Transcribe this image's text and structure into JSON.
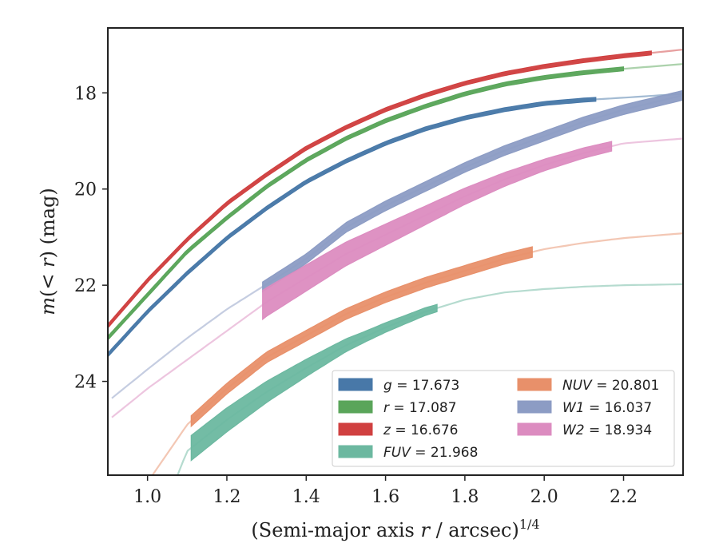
{
  "chart_data": {
    "type": "line",
    "xlabel": "(Semi-major axis r / arcsec)^1/4",
    "ylabel": "m(< r) (mag)",
    "xlim": [
      0.9,
      2.35
    ],
    "ylim": [
      25.95,
      16.65
    ],
    "y_inverted": true,
    "xticks": [
      "1.0",
      "1.2",
      "1.4",
      "1.6",
      "1.8",
      "2.0",
      "2.2"
    ],
    "yticks": [
      "18",
      "20",
      "22",
      "24"
    ],
    "grid": false,
    "legend_position": "lower-right",
    "series": [
      {
        "name": "g = 17.673",
        "label_var": "g",
        "label_val": "17.673",
        "color": "#4878a8",
        "x": [
          0.9,
          1.0,
          1.1,
          1.2,
          1.3,
          1.4,
          1.5,
          1.6,
          1.7,
          1.8,
          1.9,
          2.0,
          2.1,
          2.2,
          2.35
        ],
        "y": [
          23.45,
          22.55,
          21.75,
          21.02,
          20.4,
          19.85,
          19.42,
          19.05,
          18.75,
          18.52,
          18.35,
          18.22,
          18.15,
          18.1,
          18.02
        ],
        "band_x": [
          0.9,
          2.13
        ],
        "width": 0.08
      },
      {
        "name": "r = 17.087",
        "label_var": "r",
        "label_val": "17.087",
        "color": "#5aa55a",
        "x": [
          0.9,
          1.0,
          1.1,
          1.2,
          1.3,
          1.4,
          1.5,
          1.6,
          1.7,
          1.8,
          1.9,
          2.0,
          2.1,
          2.2,
          2.35
        ],
        "y": [
          23.1,
          22.2,
          21.3,
          20.6,
          19.95,
          19.4,
          18.95,
          18.58,
          18.28,
          18.02,
          17.82,
          17.68,
          17.58,
          17.5,
          17.4
        ],
        "band_x": [
          0.9,
          2.2
        ],
        "width": 0.08
      },
      {
        "name": "z = 16.676",
        "label_var": "z",
        "label_val": "16.676",
        "color": "#d04040",
        "x": [
          0.9,
          1.0,
          1.1,
          1.2,
          1.3,
          1.4,
          1.5,
          1.6,
          1.7,
          1.8,
          1.9,
          2.0,
          2.1,
          2.2,
          2.35
        ],
        "y": [
          22.85,
          21.9,
          21.05,
          20.3,
          19.7,
          19.15,
          18.72,
          18.35,
          18.05,
          17.8,
          17.6,
          17.45,
          17.33,
          17.23,
          17.1
        ],
        "band_x": [
          0.9,
          2.27
        ],
        "width": 0.08
      },
      {
        "name": "FUV = 21.968",
        "label_var": "FUV",
        "label_val": "21.968",
        "color": "#6cb8a0",
        "x": [
          1.0,
          1.1,
          1.2,
          1.3,
          1.4,
          1.5,
          1.6,
          1.7,
          1.8,
          1.9,
          2.0,
          2.1,
          2.2,
          2.35
        ],
        "y": [
          27.5,
          25.45,
          24.8,
          24.22,
          23.72,
          23.25,
          22.88,
          22.55,
          22.3,
          22.15,
          22.08,
          22.03,
          22.0,
          21.98
        ],
        "band_x": [
          1.11,
          1.73
        ],
        "width": [
          0.52,
          0.5,
          0.45,
          0.38,
          0.3,
          0.22,
          0.18,
          0.15
        ]
      },
      {
        "name": "NUV = 20.801",
        "label_var": "NUV",
        "label_val": "20.801",
        "color": "#e8906a",
        "x": [
          1.0,
          1.1,
          1.2,
          1.3,
          1.4,
          1.5,
          1.6,
          1.7,
          1.8,
          1.9,
          2.0,
          2.1,
          2.2,
          2.35
        ],
        "y": [
          26.1,
          24.9,
          24.15,
          23.5,
          23.05,
          22.6,
          22.25,
          21.95,
          21.7,
          21.45,
          21.25,
          21.12,
          21.02,
          20.92
        ],
        "band_x": [
          1.11,
          1.97
        ],
        "width": 0.22
      },
      {
        "name": "W1 = 16.037",
        "label_var": "W1",
        "label_val": "16.037",
        "color": "#8c9cc4",
        "x": [
          0.91,
          1.0,
          1.1,
          1.2,
          1.3,
          1.4,
          1.5,
          1.6,
          1.7,
          1.8,
          1.9,
          2.0,
          2.1,
          2.2,
          2.35
        ],
        "y": [
          24.35,
          23.75,
          23.1,
          22.5,
          21.98,
          21.45,
          20.8,
          20.35,
          19.95,
          19.55,
          19.2,
          18.9,
          18.6,
          18.35,
          18.05
        ],
        "band_x": [
          1.29,
          2.35
        ],
        "width": 0.2
      },
      {
        "name": "W2 = 18.934",
        "label_var": "W2",
        "label_val": "18.934",
        "color": "#dc8cc0",
        "x": [
          0.91,
          1.0,
          1.1,
          1.2,
          1.3,
          1.4,
          1.5,
          1.6,
          1.7,
          1.8,
          1.9,
          2.0,
          2.1,
          2.2,
          2.35
        ],
        "y": [
          24.75,
          24.15,
          23.55,
          22.95,
          22.35,
          21.85,
          21.35,
          20.95,
          20.55,
          20.15,
          19.8,
          19.5,
          19.25,
          19.05,
          18.95
        ],
        "band_x": [
          1.29,
          2.17
        ],
        "width": [
          0.6,
          0.55,
          0.5,
          0.45,
          0.4,
          0.35,
          0.3,
          0.25,
          0.22,
          0.2
        ]
      }
    ]
  }
}
